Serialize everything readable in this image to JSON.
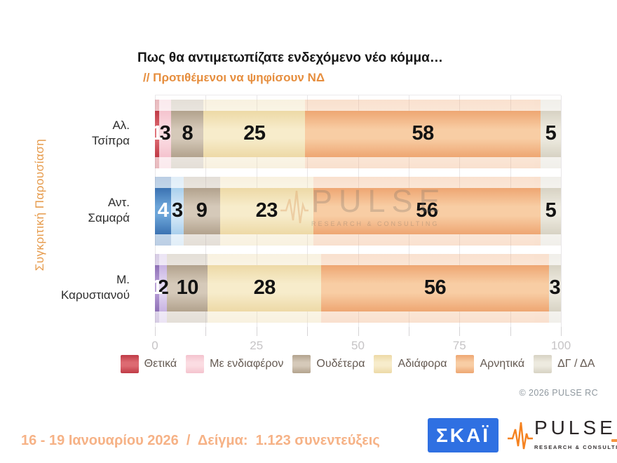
{
  "title": "Πως θα αντιμετωπίζατε ενδεχόμενο νέο κόμμα…",
  "subtitle": "// Προτιθέμενοι να ψηφίσουν ΝΔ",
  "side_label": "Συγκριτική Παρουσίαση",
  "footer": {
    "text": "16 - 19 Ιανουαρίου 2026  /  Δείγμα:  1.123 συνεντεύξεις"
  },
  "copyright": "© 2026 PULSE RC",
  "watermark": {
    "word": "PULSE",
    "sub": "RESEARCH & CONSULTING"
  },
  "logos": {
    "skai_label": "ΣΚΑΪ",
    "skai_bg": "#2f70e2",
    "pulse_word": "PULSE",
    "pulse_sub": "RESEARCH & CONSULTING",
    "pulse_orange": "#f58220"
  },
  "chart_data": {
    "type": "bar",
    "stacked": true,
    "orientation": "horizontal",
    "title": "Πως θα αντιμετωπίζατε ενδεχόμενο νέο κόμμα…",
    "subtitle": "// Προτιθέμενοι να ψηφίσουν ΝΔ",
    "categories": [
      "Αλ. Τσίπρα",
      "Αντ. Σαμαρά",
      "Μ. Καρυστιανού"
    ],
    "categories_lines": [
      [
        "Αλ.",
        "Τσίπρα"
      ],
      [
        "Αντ.",
        "Σαμαρά"
      ],
      [
        "Μ.",
        "Καρυστιανού"
      ]
    ],
    "series": [
      {
        "name": "Θετικά",
        "values": [
          1,
          4,
          1
        ],
        "label_color": "#ffffff",
        "colors_by_row": [
          [
            "#bf3a45",
            "#dd6a72"
          ],
          [
            "#3b72b2",
            "#6ba4d8"
          ],
          [
            "#8d70b5",
            "#b69cd6"
          ]
        ]
      },
      {
        "name": "Με ενδιαφέρον",
        "values": [
          3,
          3,
          2
        ],
        "colors_by_row": [
          [
            "#f4c3ce",
            "#fbdce2"
          ],
          [
            "#a9cfec",
            "#d6e9f8"
          ],
          [
            "#c7b2e1",
            "#e3d8f2"
          ]
        ]
      },
      {
        "name": "Ουδέτερα",
        "values": [
          8,
          9,
          10
        ],
        "colors": [
          "#b2a28d",
          "#d5c9b9"
        ]
      },
      {
        "name": "Αδιάφορα",
        "values": [
          25,
          23,
          28
        ],
        "colors": [
          "#edd9a6",
          "#f7eccb"
        ]
      },
      {
        "name": "Αρνητικά",
        "values": [
          58,
          56,
          56
        ],
        "colors": [
          "#eea672",
          "#f8cda4"
        ]
      },
      {
        "name": "ΔΓ / ΔΑ",
        "values": [
          5,
          5,
          3
        ],
        "colors": [
          "#d7d2c3",
          "#edeadf"
        ]
      }
    ],
    "xlim": [
      0,
      100
    ],
    "x_major_ticks": [
      0,
      25,
      50,
      75,
      100
    ],
    "x_minor_tick_step": 12.5,
    "grid": "vertical",
    "legend_position": "bottom",
    "value_labels": "inside-center"
  }
}
